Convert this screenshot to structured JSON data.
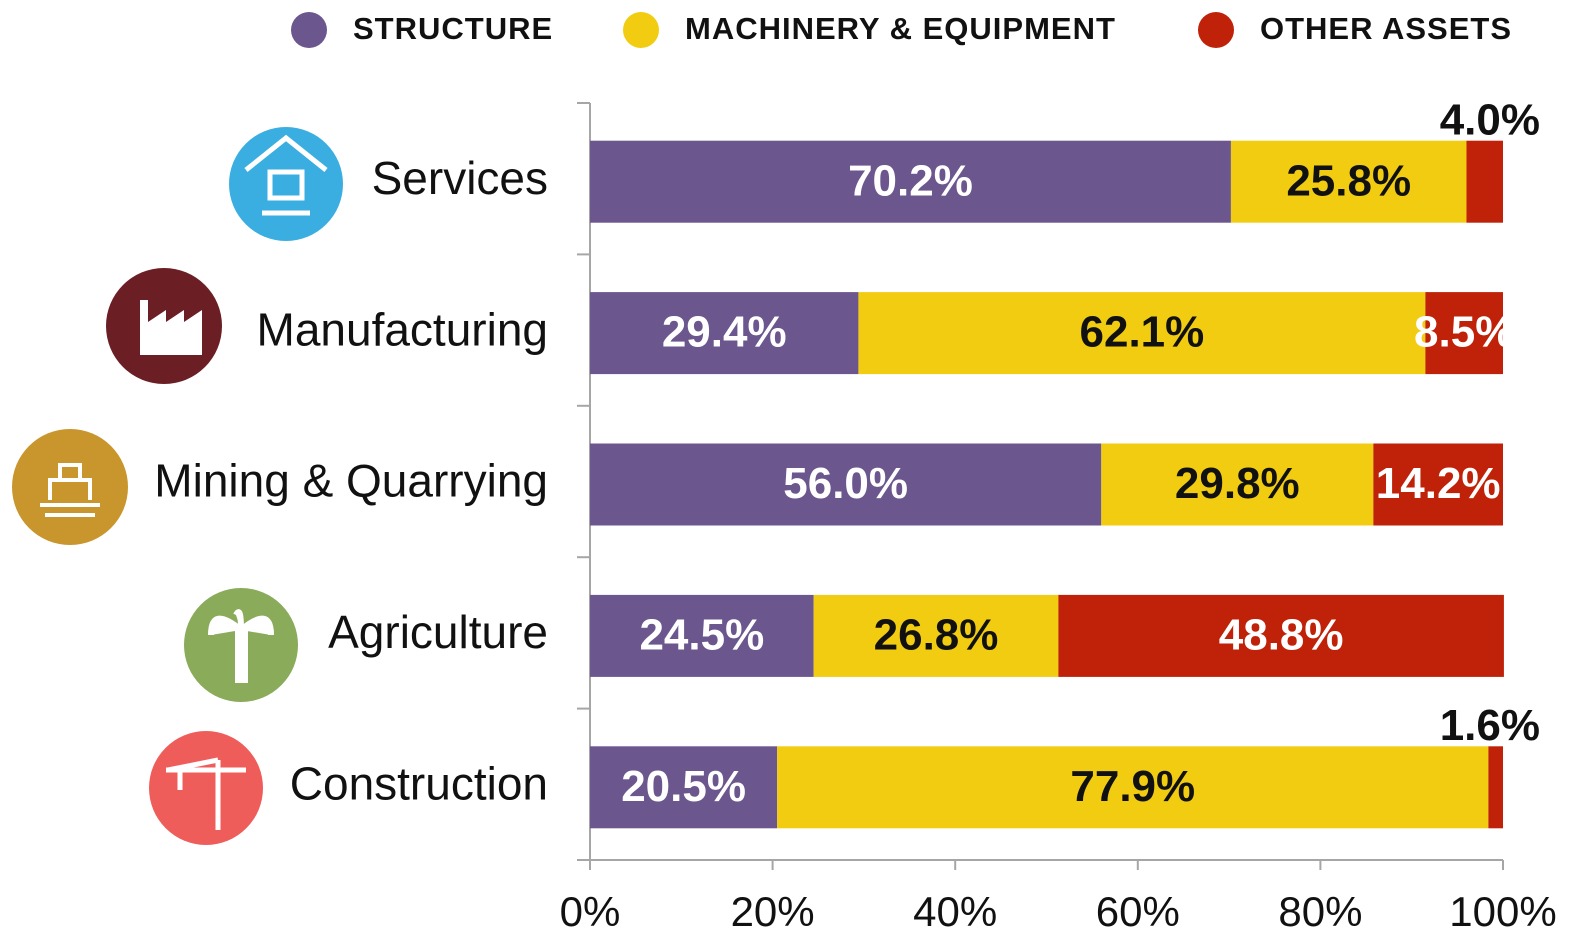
{
  "chart_data": {
    "type": "stacked-barh",
    "categories": [
      "Services",
      "Manufacturing",
      "Mining & Quarrying",
      "Agriculture",
      "Construction"
    ],
    "series": [
      {
        "name": "STRUCTURE",
        "color": "#6b568e",
        "values": [
          70.2,
          29.4,
          56.0,
          24.5,
          20.5
        ],
        "value_labels": [
          "70.2%",
          "29.4%",
          "56.0%",
          "24.5%",
          "20.5%"
        ]
      },
      {
        "name": "MACHINERY & EQUIPMENT",
        "color": "#f2cc10",
        "values": [
          25.8,
          62.1,
          29.8,
          26.8,
          77.9
        ],
        "value_labels": [
          "25.8%",
          "62.1%",
          "29.8%",
          "26.8%",
          "77.9%"
        ]
      },
      {
        "name": "OTHER ASSETS",
        "color": "#bf2208",
        "values": [
          4.0,
          8.5,
          14.2,
          48.8,
          1.6
        ],
        "value_labels": [
          "4.0%",
          "8.5%",
          "14.2%",
          "48.8%",
          "1.6%"
        ]
      }
    ],
    "xlim": [
      0,
      100
    ],
    "xticks": [
      {
        "value": 0,
        "label": "0%"
      },
      {
        "value": 20,
        "label": "20%"
      },
      {
        "value": 40,
        "label": "40%"
      },
      {
        "value": 60,
        "label": "60%"
      },
      {
        "value": 80,
        "label": "80%"
      },
      {
        "value": 100,
        "label": "100%"
      }
    ],
    "legend": "top"
  }
}
